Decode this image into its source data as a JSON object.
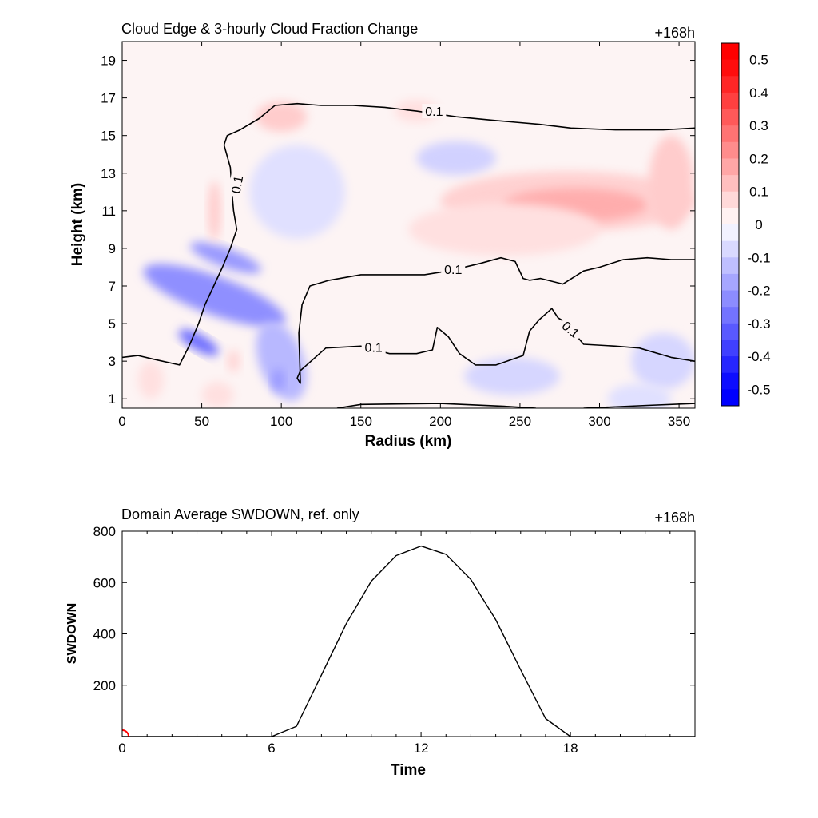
{
  "chart_data": [
    {
      "type": "heatmap",
      "title": "Cloud Edge & 3-hourly Cloud Fraction Change",
      "time_label": "+168h",
      "xlabel": "Radius (km)",
      "ylabel": "Height (km)",
      "xlim": [
        0,
        360
      ],
      "ylim": [
        0.5,
        20
      ],
      "xticks": [
        "0",
        "50",
        "100",
        "150",
        "200",
        "250",
        "300",
        "350"
      ],
      "yticks": [
        "1",
        "3",
        "5",
        "7",
        "9",
        "11",
        "13",
        "15",
        "17",
        "19"
      ],
      "colorbar": {
        "range": [
          -0.55,
          0.55
        ],
        "labels": [
          "0.5",
          "0.4",
          "0.3",
          "0.2",
          "0.1",
          "0",
          "-0.1",
          "-0.2",
          "-0.3",
          "-0.4",
          "-0.5"
        ],
        "positive_color": "#ff0000",
        "negative_color": "#0000ff"
      },
      "contour_level_label": "0.1",
      "anomaly_regions": [
        {
          "cx": 58,
          "cy": 6.5,
          "rx": 12,
          "ry": 4.0,
          "angle": -70,
          "value": -0.22
        },
        {
          "cx": 48,
          "cy": 4.0,
          "rx": 5,
          "ry": 1.2,
          "angle": -60,
          "value": -0.28
        },
        {
          "cx": 65,
          "cy": 8.5,
          "rx": 6,
          "ry": 2.0,
          "angle": -70,
          "value": -0.2
        },
        {
          "cx": 100,
          "cy": 3.0,
          "rx": 14,
          "ry": 2.2,
          "angle": -20,
          "value": -0.14
        },
        {
          "cx": 98,
          "cy": 2.0,
          "rx": 4,
          "ry": 0.6,
          "angle": 0,
          "value": -0.2
        },
        {
          "cx": 110,
          "cy": 12.0,
          "rx": 30,
          "ry": 2.5,
          "angle": 10,
          "value": -0.06
        },
        {
          "cx": 210,
          "cy": 13.8,
          "rx": 25,
          "ry": 0.9,
          "angle": 0,
          "value": -0.09
        },
        {
          "cx": 245,
          "cy": 2.2,
          "rx": 30,
          "ry": 1.0,
          "angle": 0,
          "value": -0.08
        },
        {
          "cx": 340,
          "cy": 3.0,
          "rx": 20,
          "ry": 1.5,
          "angle": 0,
          "value": -0.08
        },
        {
          "cx": 325,
          "cy": 1.0,
          "rx": 20,
          "ry": 0.8,
          "angle": 0,
          "value": -0.06
        },
        {
          "cx": 280,
          "cy": 11.5,
          "rx": 80,
          "ry": 1.6,
          "angle": 0,
          "value": 0.09
        },
        {
          "cx": 285,
          "cy": 11.3,
          "rx": 45,
          "ry": 0.9,
          "angle": 0,
          "value": 0.16
        },
        {
          "cx": 240,
          "cy": 10.0,
          "rx": 60,
          "ry": 1.4,
          "angle": 0,
          "value": 0.06
        },
        {
          "cx": 345,
          "cy": 12.5,
          "rx": 14,
          "ry": 2.5,
          "angle": 0,
          "value": 0.1
        },
        {
          "cx": 100,
          "cy": 16.0,
          "rx": 16,
          "ry": 0.8,
          "angle": 0,
          "value": 0.1
        },
        {
          "cx": 185,
          "cy": 16.3,
          "rx": 14,
          "ry": 0.6,
          "angle": 0,
          "value": 0.06
        },
        {
          "cx": 58,
          "cy": 11.0,
          "rx": 4,
          "ry": 1.6,
          "angle": 0,
          "value": 0.1
        },
        {
          "cx": 60,
          "cy": 1.2,
          "rx": 10,
          "ry": 0.7,
          "angle": 0,
          "value": 0.06
        },
        {
          "cx": 18,
          "cy": 2.0,
          "rx": 8,
          "ry": 1.0,
          "angle": 0,
          "value": 0.06
        },
        {
          "cx": 70,
          "cy": 3.0,
          "rx": 4,
          "ry": 0.6,
          "angle": 0,
          "value": 0.08
        }
      ],
      "contours": [
        {
          "points": [
            [
              0,
              3.2
            ],
            [
              10,
              3.3
            ],
            [
              20,
              3.1
            ],
            [
              36,
              2.8
            ],
            [
              42,
              3.8
            ],
            [
              48,
              5.0
            ],
            [
              52,
              6.0
            ],
            [
              57,
              6.9
            ],
            [
              63,
              8.0
            ],
            [
              68,
              9.0
            ],
            [
              72,
              10.0
            ],
            [
              70,
              11.0
            ],
            [
              69,
              12.0
            ],
            [
              68,
              13.3
            ],
            [
              64,
              14.5
            ],
            [
              66,
              15.0
            ],
            [
              74,
              15.3
            ],
            [
              86,
              15.9
            ],
            [
              96,
              16.6
            ],
            [
              110,
              16.7
            ],
            [
              125,
              16.6
            ],
            [
              145,
              16.6
            ],
            [
              165,
              16.5
            ],
            [
              185,
              16.3
            ],
            [
              210,
              16.0
            ],
            [
              235,
              15.8
            ],
            [
              262,
              15.6
            ],
            [
              282,
              15.4
            ],
            [
              310,
              15.3
            ],
            [
              340,
              15.3
            ],
            [
              360,
              15.4
            ]
          ],
          "labels": [
            {
              "x": 72,
              "y": 12.4,
              "angle": -80
            },
            {
              "x": 196,
              "y": 16.3,
              "angle": 0
            }
          ]
        },
        {
          "points": [
            [
              112,
              1.8
            ],
            [
              110,
              2.1
            ],
            [
              112,
              2.5
            ],
            [
              128,
              3.7
            ],
            [
              150,
              3.8
            ],
            [
              168,
              3.4
            ],
            [
              185,
              3.4
            ],
            [
              195,
              3.6
            ],
            [
              198,
              4.8
            ],
            [
              205,
              4.3
            ],
            [
              212,
              3.4
            ],
            [
              222,
              2.8
            ],
            [
              235,
              2.8
            ],
            [
              252,
              3.3
            ],
            [
              256,
              4.6
            ],
            [
              262,
              5.2
            ],
            [
              270,
              5.8
            ],
            [
              274,
              5.3
            ],
            [
              278,
              5.1
            ],
            [
              290,
              3.9
            ],
            [
              310,
              3.8
            ],
            [
              325,
              3.7
            ],
            [
              345,
              3.2
            ],
            [
              360,
              3.0
            ]
          ],
          "labels": [
            {
              "x": 158,
              "y": 3.75,
              "angle": 0
            },
            {
              "x": 282,
              "y": 4.7,
              "angle": 40
            }
          ]
        },
        {
          "points": [
            [
              112,
              1.8
            ],
            [
              111,
              4.5
            ],
            [
              113,
              6.0
            ],
            [
              118,
              7.0
            ],
            [
              130,
              7.3
            ],
            [
              150,
              7.6
            ],
            [
              170,
              7.6
            ],
            [
              190,
              7.6
            ],
            [
              205,
              7.8
            ],
            [
              225,
              8.2
            ],
            [
              238,
              8.5
            ],
            [
              247,
              8.3
            ],
            [
              252,
              7.4
            ],
            [
              256,
              7.3
            ],
            [
              263,
              7.4
            ],
            [
              277,
              7.1
            ],
            [
              290,
              7.8
            ],
            [
              300,
              8.0
            ],
            [
              315,
              8.4
            ],
            [
              330,
              8.5
            ],
            [
              345,
              8.4
            ],
            [
              360,
              8.4
            ]
          ],
          "labels": [
            {
              "x": 208,
              "y": 7.9,
              "angle": 0
            }
          ]
        },
        {
          "points": [
            [
              135,
              0.5
            ],
            [
              150,
              0.7
            ],
            [
              200,
              0.75
            ],
            [
              240,
              0.6
            ],
            [
              260,
              0.5
            ]
          ],
          "labels": []
        },
        {
          "points": [
            [
              290,
              0.5
            ],
            [
              330,
              0.65
            ],
            [
              360,
              0.75
            ]
          ],
          "labels": []
        }
      ]
    },
    {
      "type": "line",
      "title": "Domain Average SWDOWN, ref. only",
      "time_label": "+168h",
      "xlabel": "Time",
      "ylabel": "SWDOWN",
      "xlim": [
        0,
        23
      ],
      "ylim": [
        0,
        800
      ],
      "xticks": [
        "0",
        "6",
        "12",
        "18"
      ],
      "yticks": [
        "200",
        "400",
        "600",
        "800"
      ],
      "x": [
        0,
        1,
        2,
        3,
        4,
        5,
        6,
        7,
        8,
        9,
        10,
        11,
        12,
        13,
        14,
        15,
        16,
        17,
        18,
        19,
        20,
        21,
        22,
        23
      ],
      "values": [
        0,
        0,
        0,
        0,
        0,
        0,
        0,
        40,
        240,
        440,
        605,
        705,
        742,
        710,
        612,
        455,
        260,
        70,
        0,
        0,
        0,
        0,
        0,
        0
      ],
      "marker": {
        "x": 0,
        "y": 0,
        "color": "#ff0000"
      }
    }
  ]
}
